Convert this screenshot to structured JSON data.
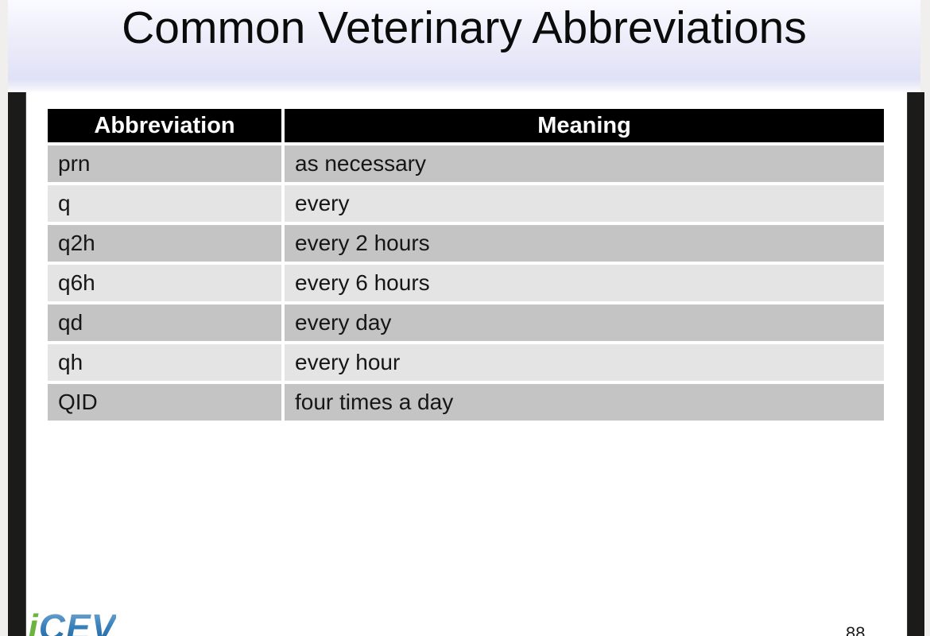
{
  "slide": {
    "title": "Common Veterinary Abbreviations",
    "page_number": "88"
  },
  "table": {
    "headers": [
      "Abbreviation",
      "Meaning"
    ],
    "rows": [
      {
        "abbr": "prn",
        "meaning": "as necessary"
      },
      {
        "abbr": "q",
        "meaning": "every"
      },
      {
        "abbr": "q2h",
        "meaning": "every 2 hours"
      },
      {
        "abbr": "q6h",
        "meaning": "every 6 hours"
      },
      {
        "abbr": "qd",
        "meaning": "every day"
      },
      {
        "abbr": "qh",
        "meaning": "every hour"
      },
      {
        "abbr": "QID",
        "meaning": "four times a day"
      }
    ]
  },
  "logo": {
    "i": "i",
    "cev": "CEV"
  },
  "colors": {
    "header_bg": "#000000",
    "header_text": "#ffffff",
    "row_dark": "#c4c4c4",
    "row_light": "#e4e4e4",
    "band_top": "#fafaff",
    "band_bottom": "#dfe1f6",
    "frame_black": "#1b1b19",
    "page_edge": "#f0efed",
    "logo_green": "#6db33f",
    "logo_blue": "#2e75b5"
  }
}
